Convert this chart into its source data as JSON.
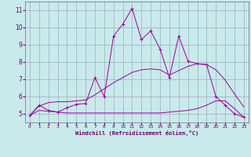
{
  "xlabel": "Windchill (Refroidissement éolien,°C)",
  "x": [
    0,
    1,
    2,
    3,
    4,
    5,
    6,
    7,
    8,
    9,
    10,
    11,
    12,
    13,
    14,
    15,
    16,
    17,
    18,
    19,
    20,
    21,
    22,
    23
  ],
  "line_jagged": [
    4.9,
    5.5,
    5.2,
    5.1,
    5.35,
    5.55,
    5.6,
    7.1,
    6.0,
    9.5,
    10.2,
    11.1,
    9.3,
    9.8,
    8.75,
    7.1,
    9.5,
    8.05,
    7.9,
    7.85,
    6.0,
    5.5,
    5.0,
    4.8
  ],
  "smooth_upper": [
    4.9,
    5.45,
    5.65,
    5.7,
    5.7,
    5.75,
    5.8,
    6.1,
    6.45,
    6.8,
    7.1,
    7.4,
    7.55,
    7.6,
    7.55,
    7.25,
    7.5,
    7.75,
    7.9,
    7.85,
    7.55,
    6.95,
    6.15,
    5.4
  ],
  "smooth_lower": [
    4.9,
    5.2,
    5.15,
    5.1,
    5.05,
    5.05,
    5.05,
    5.05,
    5.05,
    5.05,
    5.05,
    5.05,
    5.05,
    5.05,
    5.05,
    5.1,
    5.15,
    5.2,
    5.3,
    5.5,
    5.75,
    5.75,
    5.3,
    4.8
  ],
  "color": "#990099",
  "bg_color": "#c8eaea",
  "grid_color": "#9999bb",
  "ylim": [
    4.5,
    11.5
  ],
  "yticks": [
    5,
    6,
    7,
    8,
    9,
    10,
    11
  ],
  "xticks": [
    0,
    1,
    2,
    3,
    4,
    5,
    6,
    7,
    8,
    9,
    10,
    11,
    12,
    13,
    14,
    15,
    16,
    17,
    18,
    19,
    20,
    21,
    22,
    23
  ]
}
